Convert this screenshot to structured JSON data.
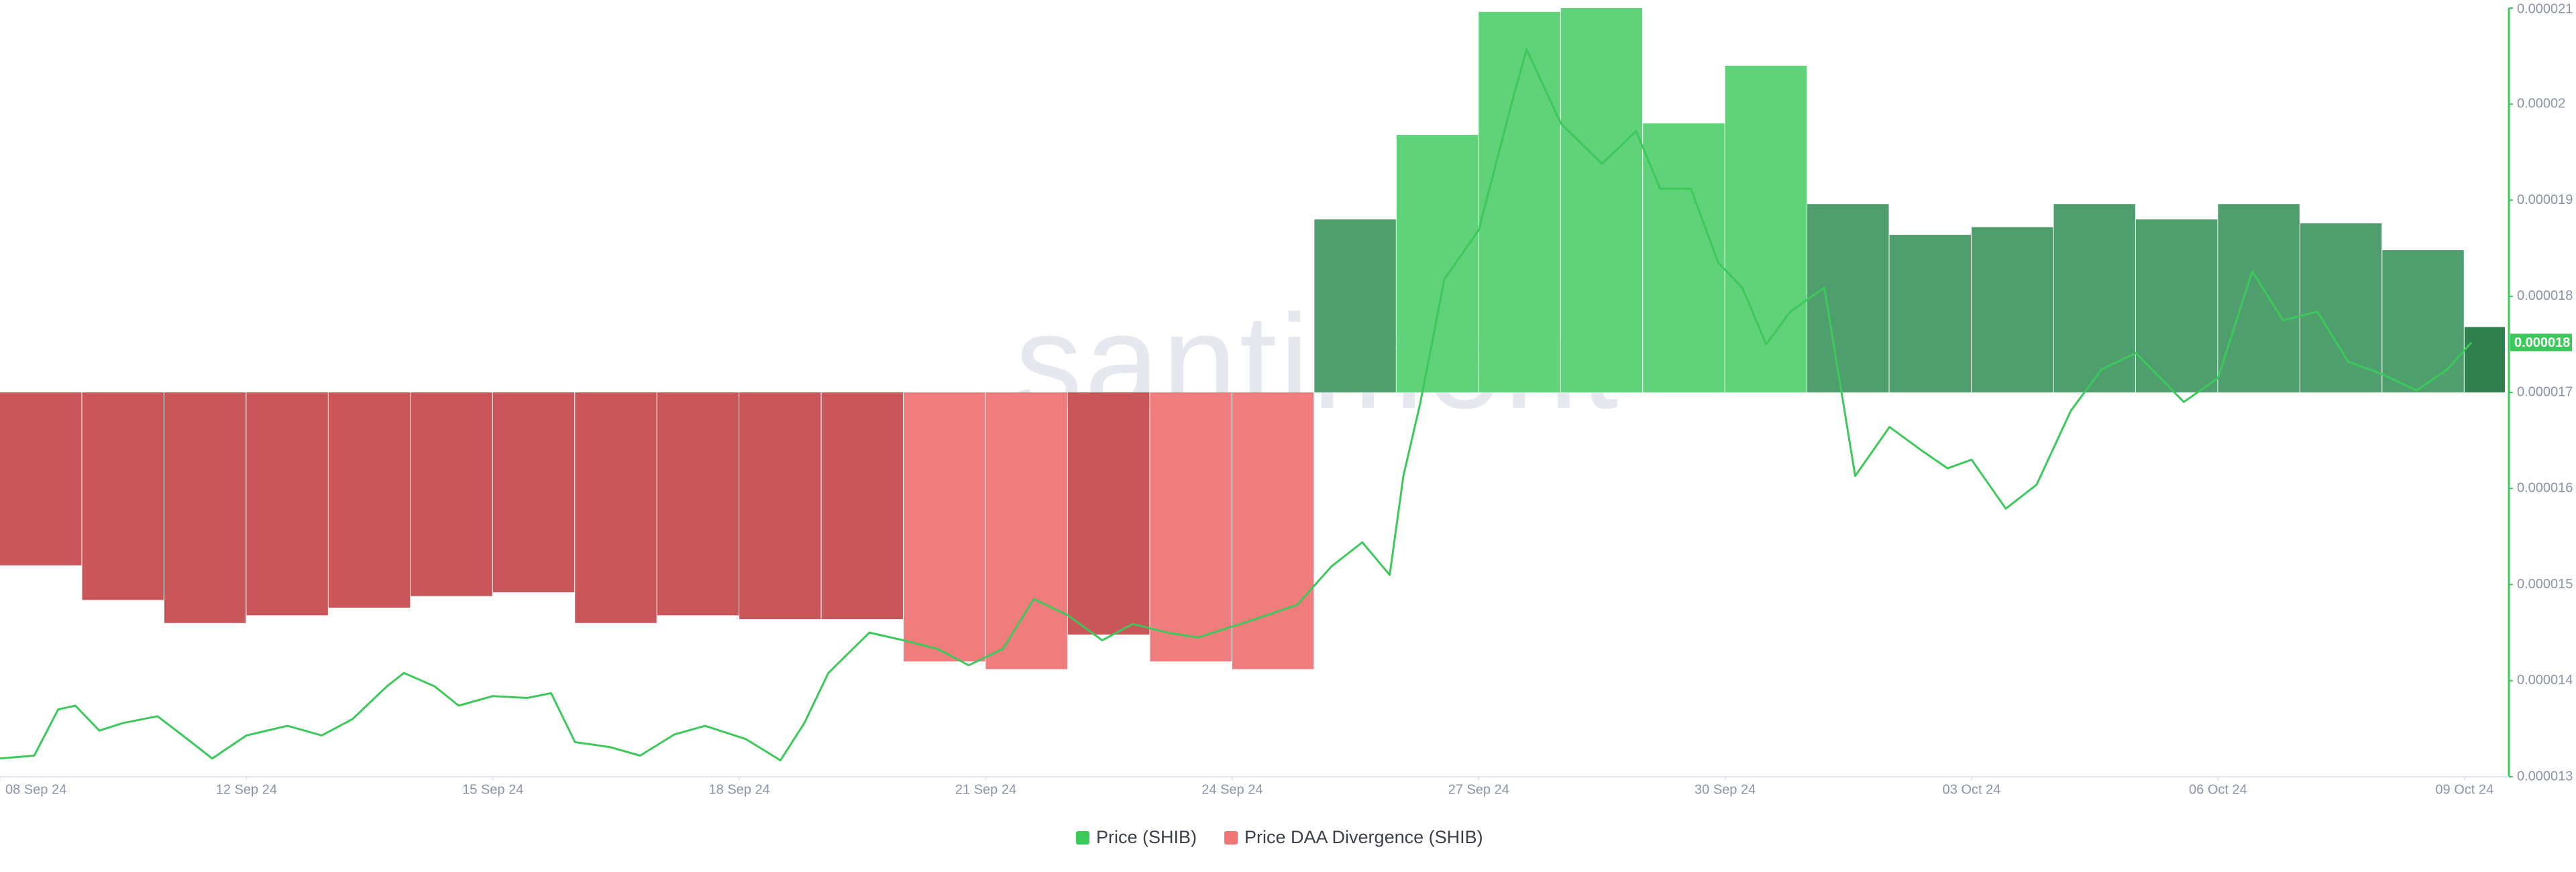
{
  "chart_data": {
    "type": "combo",
    "watermark": ".santiment",
    "xlim": [
      "2024-09-09T00:00",
      "2024-10-09T12:00"
    ],
    "xticks": [
      {
        "value": "2024-09-08T00:00",
        "label": "08 Sep 24"
      },
      {
        "value": "2024-09-12T00:00",
        "label": "12 Sep 24"
      },
      {
        "value": "2024-09-15T00:00",
        "label": "15 Sep 24"
      },
      {
        "value": "2024-09-18T00:00",
        "label": "18 Sep 24"
      },
      {
        "value": "2024-09-21T00:00",
        "label": "21 Sep 24"
      },
      {
        "value": "2024-09-24T00:00",
        "label": "24 Sep 24"
      },
      {
        "value": "2024-09-27T00:00",
        "label": "27 Sep 24"
      },
      {
        "value": "2024-09-30T00:00",
        "label": "30 Sep 24"
      },
      {
        "value": "2024-10-03T00:00",
        "label": "03 Oct 24"
      },
      {
        "value": "2024-10-06T00:00",
        "label": "06 Oct 24"
      },
      {
        "value": "2024-10-09T00:00",
        "label": "09 Oct 24"
      }
    ],
    "ylim": [
      1.3e-05,
      2.1e-05
    ],
    "yticks": [
      1.3e-05,
      1.4e-05,
      1.5e-05,
      1.6e-05,
      1.7e-05,
      1.8e-05,
      1.9e-05,
      2e-05,
      2.1e-05
    ],
    "y2lim": [
      -100,
      100
    ],
    "axis_color": "#3cc85a",
    "series": [
      {
        "name": "Price (SHIB)",
        "type": "line",
        "color": "#3cc85a",
        "last_value_label": "0.000018",
        "x": [
          "2024-09-09T00:00",
          "2024-09-09T10:00",
          "2024-09-09T17:00",
          "2024-09-09T22:00",
          "2024-09-10T05:00",
          "2024-09-10T12:00",
          "2024-09-10T22:00",
          "2024-09-11T05:00",
          "2024-09-11T14:00",
          "2024-09-12T00:00",
          "2024-09-12T12:00",
          "2024-09-12T22:00",
          "2024-09-13T07:00",
          "2024-09-13T17:00",
          "2024-09-13T22:00",
          "2024-09-14T07:00",
          "2024-09-14T14:00",
          "2024-09-15T00:00",
          "2024-09-15T10:00",
          "2024-09-15T17:00",
          "2024-09-16T00:00",
          "2024-09-16T10:00",
          "2024-09-16T19:00",
          "2024-09-17T05:00",
          "2024-09-17T14:00",
          "2024-09-18T02:00",
          "2024-09-18T12:00",
          "2024-09-18T19:00",
          "2024-09-19T02:00",
          "2024-09-19T14:00",
          "2024-09-20T00:00",
          "2024-09-20T10:00",
          "2024-09-20T19:00",
          "2024-09-21T05:00",
          "2024-09-21T14:00",
          "2024-09-22T00:00",
          "2024-09-22T10:00",
          "2024-09-22T19:00",
          "2024-09-23T05:00",
          "2024-09-23T14:00",
          "2024-09-24T05:00",
          "2024-09-24T19:00",
          "2024-09-25T05:00",
          "2024-09-25T14:00",
          "2024-09-25T22:00",
          "2024-09-26T02:00",
          "2024-09-26T07:00",
          "2024-09-26T14:00",
          "2024-09-27T00:00",
          "2024-09-27T10:00",
          "2024-09-27T14:00",
          "2024-09-28T00:00",
          "2024-09-28T12:00",
          "2024-09-28T22:00",
          "2024-09-29T05:00",
          "2024-09-29T14:00",
          "2024-09-29T22:00",
          "2024-09-30T05:00",
          "2024-09-30T12:00",
          "2024-09-30T19:00",
          "2024-10-01T05:00",
          "2024-10-01T14:00",
          "2024-10-02T00:00",
          "2024-10-02T10:00",
          "2024-10-02T17:00",
          "2024-10-03T00:00",
          "2024-10-03T10:00",
          "2024-10-03T19:00",
          "2024-10-04T05:00",
          "2024-10-04T14:00",
          "2024-10-05T00:00",
          "2024-10-05T14:00",
          "2024-10-06T00:00",
          "2024-10-06T10:00",
          "2024-10-06T19:00",
          "2024-10-07T05:00",
          "2024-10-07T14:00",
          "2024-10-08T00:00",
          "2024-10-08T10:00",
          "2024-10-08T19:00",
          "2024-10-09T02:00"
        ],
        "values": [
          1.319e-05,
          1.322e-05,
          1.37e-05,
          1.374e-05,
          1.348e-05,
          1.356e-05,
          1.363e-05,
          1.344e-05,
          1.319e-05,
          1.343e-05,
          1.353e-05,
          1.343e-05,
          1.36e-05,
          1.394e-05,
          1.408e-05,
          1.394e-05,
          1.374e-05,
          1.384e-05,
          1.382e-05,
          1.387e-05,
          1.336e-05,
          1.331e-05,
          1.322e-05,
          1.344e-05,
          1.353e-05,
          1.339e-05,
          1.317e-05,
          1.356e-05,
          1.408e-05,
          1.45e-05,
          1.442e-05,
          1.433e-05,
          1.416e-05,
          1.433e-05,
          1.485e-05,
          1.468e-05,
          1.442e-05,
          1.459e-05,
          1.45e-05,
          1.445e-05,
          1.462e-05,
          1.479e-05,
          1.519e-05,
          1.544e-05,
          1.51e-05,
          1.613e-05,
          1.69e-05,
          1.818e-05,
          1.869e-05,
          2.006e-05,
          2.057e-05,
          1.98e-05,
          1.938e-05,
          1.972e-05,
          1.912e-05,
          1.912e-05,
          1.835e-05,
          1.809e-05,
          1.75e-05,
          1.784e-05,
          1.809e-05,
          1.613e-05,
          1.664e-05,
          1.638e-05,
          1.621e-05,
          1.63e-05,
          1.579e-05,
          1.604e-05,
          1.681e-05,
          1.724e-05,
          1.741e-05,
          1.69e-05,
          1.715e-05,
          1.826e-05,
          1.775e-05,
          1.784e-05,
          1.732e-05,
          1.719e-05,
          1.702e-05,
          1.724e-05,
          1.752e-05
        ]
      },
      {
        "name": "Price DAA Divergence (SHIB)",
        "type": "bar",
        "axis": "y2",
        "color": "#f07575",
        "x": [
          "2024-09-09",
          "2024-09-10",
          "2024-09-11",
          "2024-09-12",
          "2024-09-13",
          "2024-09-14",
          "2024-09-15",
          "2024-09-16",
          "2024-09-17",
          "2024-09-18",
          "2024-09-19",
          "2024-09-20",
          "2024-09-21",
          "2024-09-22",
          "2024-09-23",
          "2024-09-24",
          "2024-09-25",
          "2024-09-26",
          "2024-09-27",
          "2024-09-28",
          "2024-09-29",
          "2024-09-30",
          "2024-10-01",
          "2024-10-02",
          "2024-10-03",
          "2024-10-04",
          "2024-10-05",
          "2024-10-06",
          "2024-10-07",
          "2024-10-08",
          "2024-10-09"
        ],
        "values": [
          -45,
          -54,
          -60,
          -58,
          -56,
          -53,
          -52,
          -60,
          -58,
          -59,
          -59,
          -70,
          -72,
          -63,
          -70,
          -72,
          45,
          67,
          99,
          100,
          70,
          85,
          49,
          41,
          43,
          49,
          45,
          49,
          44,
          37,
          17
        ],
        "colors": [
          "#c9575a",
          "#c9575a",
          "#c9575a",
          "#c9575a",
          "#c9575a",
          "#c9575a",
          "#c9575a",
          "#c9575a",
          "#c9575a",
          "#c9575a",
          "#c9575a",
          "#f07d7d",
          "#f07d7d",
          "#c9575a",
          "#f07d7d",
          "#f07d7d",
          "#4f9e6e",
          "#5fd27a",
          "#5fd27a",
          "#5fd27a",
          "#5fd27a",
          "#5fd27a",
          "#4f9e6e",
          "#4f9e6e",
          "#4f9e6e",
          "#4f9e6e",
          "#4f9e6e",
          "#4f9e6e",
          "#4f9e6e",
          "#4f9e6e",
          "#2f7f4f"
        ]
      }
    ]
  }
}
